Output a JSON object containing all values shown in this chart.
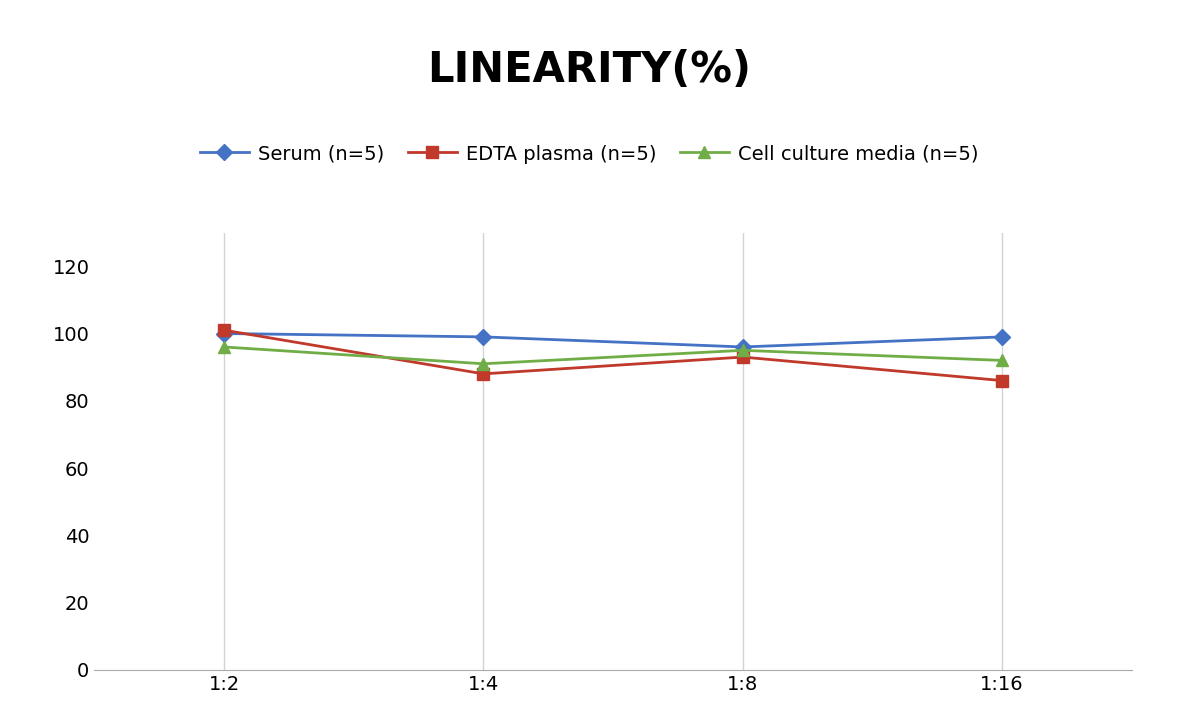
{
  "title": "LINEARITY(%)",
  "title_fontsize": 30,
  "title_fontweight": "bold",
  "x_labels": [
    "1:2",
    "1:4",
    "1:8",
    "1:16"
  ],
  "x_positions": [
    0,
    1,
    2,
    3
  ],
  "series": [
    {
      "label": "Serum (n=5)",
      "values": [
        100,
        99,
        96,
        99
      ],
      "color": "#4472C4",
      "marker": "D",
      "markersize": 8,
      "linewidth": 2
    },
    {
      "label": "EDTA plasma (n=5)",
      "values": [
        101,
        88,
        93,
        86
      ],
      "color": "#C0392B",
      "marker": "s",
      "markersize": 8,
      "linewidth": 2
    },
    {
      "label": "Cell culture media (n=5)",
      "values": [
        96,
        91,
        95,
        92
      ],
      "color": "#70AD47",
      "marker": "^",
      "markersize": 8,
      "linewidth": 2
    }
  ],
  "ylim": [
    0,
    130
  ],
  "yticks": [
    0,
    20,
    40,
    60,
    80,
    100,
    120
  ],
  "grid_color": "#D3D3D3",
  "background_color": "#FFFFFF",
  "legend_fontsize": 14,
  "tick_fontsize": 14,
  "spine_color": "#AAAAAA"
}
